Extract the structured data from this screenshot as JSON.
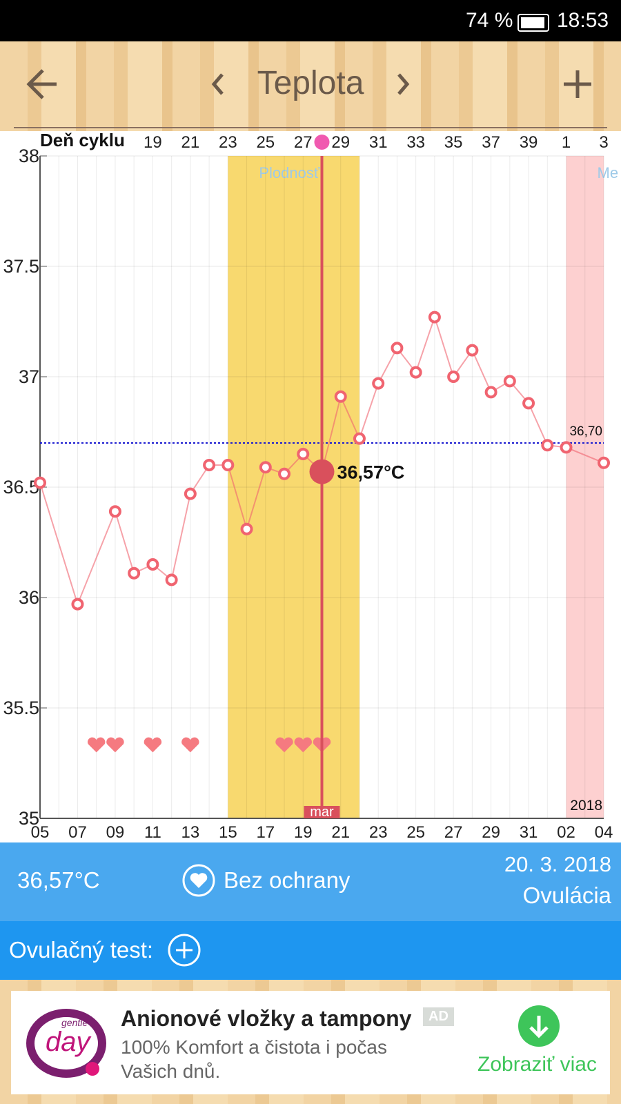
{
  "status_bar": {
    "battery": "74 %",
    "time": "18:53"
  },
  "header": {
    "title": "Teplota"
  },
  "chart_data": {
    "type": "line",
    "x": [
      0,
      2,
      4,
      5,
      6,
      7,
      8,
      9,
      10,
      11,
      12,
      13,
      14,
      15,
      16,
      17,
      18,
      19,
      20,
      21,
      22,
      23,
      24,
      25,
      26,
      27,
      28,
      30
    ],
    "values": [
      36.52,
      35.97,
      36.39,
      36.11,
      36.15,
      36.08,
      36.47,
      36.6,
      36.6,
      36.31,
      36.59,
      36.56,
      36.65,
      36.57,
      36.91,
      36.72,
      36.97,
      37.13,
      37.02,
      37.27,
      37.0,
      37.12,
      36.93,
      36.98,
      36.88,
      36.69,
      36.68,
      36.61
    ],
    "color": "#f06470",
    "xlim": [
      0,
      30
    ],
    "xticks": [
      {
        "value": 0,
        "label": "05"
      },
      {
        "value": 2,
        "label": "07"
      },
      {
        "value": 4,
        "label": "09"
      },
      {
        "value": 6,
        "label": "11"
      },
      {
        "value": 8,
        "label": "13"
      },
      {
        "value": 10,
        "label": "15"
      },
      {
        "value": 12,
        "label": "17"
      },
      {
        "value": 14,
        "label": "19"
      },
      {
        "value": 16,
        "label": "21"
      },
      {
        "value": 18,
        "label": "23"
      },
      {
        "value": 20,
        "label": "25"
      },
      {
        "value": 22,
        "label": "27"
      },
      {
        "value": 24,
        "label": "29"
      },
      {
        "value": 26,
        "label": "31"
      },
      {
        "value": 28,
        "label": "02"
      },
      {
        "value": 30,
        "label": "04"
      }
    ],
    "x2_title": "Deň cyklu",
    "x2ticks": [
      {
        "value": 6,
        "label": "19"
      },
      {
        "value": 8,
        "label": "21"
      },
      {
        "value": 10,
        "label": "23"
      },
      {
        "value": 12,
        "label": "25"
      },
      {
        "value": 14,
        "label": "27"
      },
      {
        "value": 16,
        "label": "29"
      },
      {
        "value": 18,
        "label": "31"
      },
      {
        "value": 20,
        "label": "33"
      },
      {
        "value": 22,
        "label": "35"
      },
      {
        "value": 24,
        "label": "37"
      },
      {
        "value": 26,
        "label": "39"
      },
      {
        "value": 28,
        "label": "1"
      },
      {
        "value": 30,
        "label": "3"
      }
    ],
    "ylim": [
      35,
      38
    ],
    "yticks": [
      35,
      35.5,
      36,
      36.5,
      37,
      37.5,
      38
    ],
    "grid": true,
    "bands": [
      {
        "from": 10,
        "to": 17,
        "label": "Plodnosť",
        "color": "#f8d96f"
      },
      {
        "from": 28,
        "to": 30,
        "label": "Me",
        "color": "#fdd0d0"
      }
    ],
    "reference": {
      "value": 36.7,
      "label": "36,70",
      "color": "#1a1ad0"
    },
    "cursor": {
      "x": 15,
      "value": 36.57,
      "label": "36,57°C",
      "month": "mar",
      "color": "#d9505c"
    },
    "year_label": "2018",
    "hearts_x": [
      3,
      4,
      6,
      8,
      13,
      14,
      15
    ]
  },
  "info": {
    "temperature": "36,57°C",
    "protection": "Bez ochrany",
    "date": "20. 3. 2018",
    "phase": "Ovulácia"
  },
  "ovulation_test": {
    "label": "Ovulačný test:"
  },
  "ad": {
    "logo_small": "gentle",
    "logo": "day",
    "title": "Anionové vložky a tampony",
    "badge": "AD",
    "text": "100% Komfort a čistota i počas Vašich dnů.",
    "cta": "Zobraziť viac"
  }
}
